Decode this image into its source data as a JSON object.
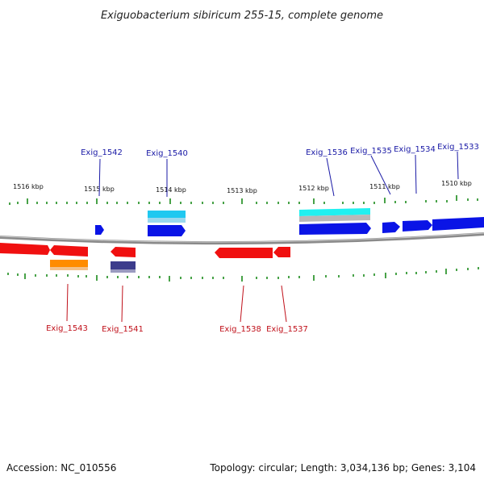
{
  "title": "Exiguobacterium sibiricum 255-15, complete genome",
  "footer": {
    "accession": "Accession: NC_010556",
    "topology": "Topology: circular; Length: 3,034,136 bp; Genes: 3,104"
  },
  "scale_labels": [
    "1516 kbp",
    "1515 kbp",
    "1514 kbp",
    "1513 kbp",
    "1512 kbp",
    "1511 kbp",
    "1510 kbp"
  ],
  "gene_labels_top": [
    "Exig_1542",
    "Exig_1540",
    "Exig_1536",
    "Exig_1535",
    "Exig_1534",
    "Exig_1533"
  ],
  "gene_labels_bottom": [
    "Exig_1543",
    "Exig_1541",
    "Exig_1538",
    "Exig_1537"
  ],
  "colors": {
    "forward_gene": "#0a14e6",
    "reverse_gene": "#f01010",
    "cyan_feature": "#20c8f0",
    "aqua_feature": "#20f0f0",
    "orange_feature": "#ff8c00",
    "navy_feature": "#3c3c8c",
    "backbone": "#8a8a8a",
    "tick": "#1a8a1a"
  }
}
